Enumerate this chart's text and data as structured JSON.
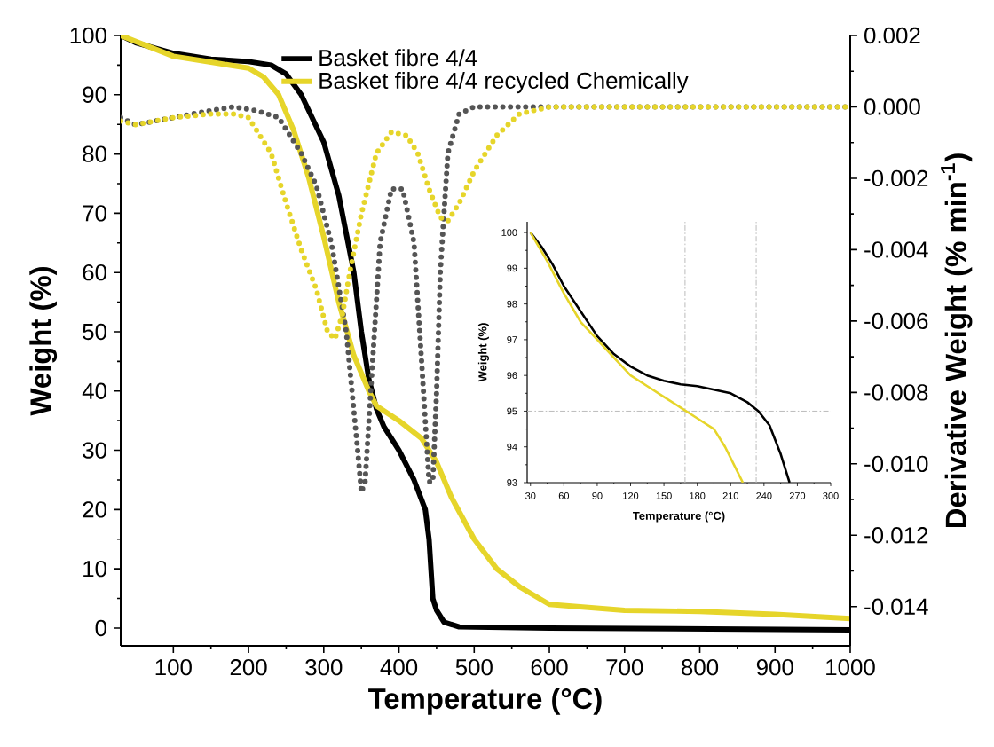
{
  "chart_data": [
    {
      "type": "line",
      "xlabel": "Temperature (°C)",
      "ylabel": "Weight (%)",
      "y2label": "Derivative Weight (% min$^{-1}$)",
      "xlim": [
        30,
        1000
      ],
      "ylim": [
        -3,
        100
      ],
      "y2lim": [
        -0.0151,
        0.002
      ],
      "xticks": [
        100,
        200,
        300,
        400,
        500,
        600,
        700,
        800,
        900,
        1000
      ],
      "yticks": [
        0,
        10,
        20,
        30,
        40,
        50,
        60,
        70,
        80,
        90,
        100
      ],
      "y2ticks": [
        {
          "value": 0.002,
          "label": "0.002"
        },
        {
          "value": 0,
          "label": "0.000"
        },
        {
          "value": -0.002,
          "label": "-0.002"
        },
        {
          "value": -0.004,
          "label": "-0.004"
        },
        {
          "value": -0.006,
          "label": "-0.006"
        },
        {
          "value": -0.008,
          "label": "-0.008"
        },
        {
          "value": -0.01,
          "label": "-0.010"
        },
        {
          "value": -0.012,
          "label": "-0.012"
        },
        {
          "value": -0.014,
          "label": "-0.014"
        }
      ],
      "grid": false,
      "legend": "top",
      "marker": "none",
      "series": [
        {
          "name": "Basket fibre 4/4",
          "color": "#000000",
          "line_style": "solid",
          "x": [
            30,
            50,
            100,
            150,
            200,
            230,
            250,
            270,
            300,
            320,
            340,
            350,
            360,
            370,
            380,
            400,
            420,
            435,
            440,
            445,
            450,
            460,
            480,
            600,
            1000
          ],
          "values": [
            100,
            98.8,
            97,
            96,
            95.6,
            95,
            93.5,
            90,
            82,
            73,
            60,
            50,
            42,
            37,
            34,
            30,
            25,
            20,
            15,
            5,
            3,
            1,
            0.2,
            0,
            -0.3
          ]
        },
        {
          "name": "Basket fibre 4/4 recycled Chemically",
          "color": "#e6d52a",
          "line_style": "solid",
          "x": [
            30,
            100,
            150,
            200,
            220,
            240,
            260,
            280,
            300,
            320,
            340,
            360,
            370,
            400,
            430,
            450,
            470,
            500,
            530,
            560,
            600,
            700,
            800,
            900,
            1000
          ],
          "values": [
            100,
            96.5,
            95.5,
            94.5,
            93,
            90,
            84,
            76,
            66,
            55,
            46,
            40,
            37.5,
            35,
            32,
            28,
            22,
            15,
            10,
            7,
            4,
            3,
            2.8,
            2.3,
            1.6
          ]
        },
        {
          "color": "#555555",
          "line_style": "dotted",
          "axis": "y2",
          "x": [
            30,
            50,
            100,
            150,
            180,
            210,
            240,
            270,
            290,
            310,
            330,
            345,
            350,
            355,
            365,
            375,
            390,
            405,
            420,
            430,
            440,
            445,
            450,
            455,
            465,
            480,
            500,
            1000
          ],
          "values": [
            -0.0003,
            -0.0005,
            -0.0003,
            -0.0001,
            0,
            -0.0001,
            -0.0003,
            -0.0013,
            -0.0022,
            -0.0038,
            -0.0063,
            -0.0096,
            -0.0108,
            -0.0105,
            -0.0071,
            -0.0038,
            -0.0023,
            -0.0023,
            -0.0038,
            -0.0071,
            -0.0105,
            -0.0105,
            -0.008,
            -0.0046,
            -0.0013,
            -0.0002,
            0,
            0
          ]
        },
        {
          "color": "#e6d52a",
          "line_style": "dotted",
          "axis": "y2",
          "x": [
            30,
            50,
            100,
            150,
            180,
            200,
            230,
            250,
            270,
            290,
            305,
            315,
            325,
            335,
            350,
            370,
            390,
            410,
            425,
            440,
            455,
            465,
            480,
            500,
            530,
            560,
            600,
            1000
          ],
          "values": [
            -0.0004,
            -0.0005,
            -0.0003,
            -0.0002,
            -0.0002,
            -0.0003,
            -0.0013,
            -0.0027,
            -0.004,
            -0.0051,
            -0.0063,
            -0.0065,
            -0.0058,
            -0.0046,
            -0.003,
            -0.0013,
            -0.0007,
            -0.0008,
            -0.0013,
            -0.0023,
            -0.0031,
            -0.0032,
            -0.0027,
            -0.0018,
            -0.0008,
            -0.0002,
            0,
            0
          ]
        }
      ]
    },
    {
      "type": "line",
      "xlabel": "Temperature (°C)",
      "ylabel": "Weight (%)",
      "xlim": [
        27,
        300
      ],
      "ylim": [
        93,
        100.3
      ],
      "xticks": [
        30,
        60,
        90,
        120,
        150,
        180,
        210,
        240,
        270,
        300
      ],
      "yticks": [
        93,
        94,
        95,
        96,
        97,
        98,
        99,
        100
      ],
      "grid": false,
      "marker": "none",
      "ref_lines": [
        {
          "axis": "y",
          "value": 95,
          "color": "#bbbbbb",
          "line_style": "dashed"
        },
        {
          "axis": "x",
          "value": 169,
          "color": "#bbbbbb",
          "line_style": "dashed"
        },
        {
          "axis": "x",
          "value": 233,
          "color": "#bbbbbb",
          "line_style": "dashed"
        }
      ],
      "series": [
        {
          "color": "#000000",
          "x": [
            30,
            40,
            50,
            60,
            75,
            90,
            105,
            120,
            135,
            150,
            165,
            180,
            195,
            210,
            225,
            235,
            245,
            255,
            263
          ],
          "values": [
            100,
            99.6,
            99.1,
            98.5,
            97.8,
            97.1,
            96.6,
            96.25,
            96,
            95.85,
            95.75,
            95.7,
            95.6,
            95.5,
            95.25,
            95,
            94.6,
            93.8,
            93
          ]
        },
        {
          "color": "#e6d52a",
          "x": [
            30,
            45,
            60,
            75,
            90,
            105,
            120,
            135,
            150,
            165,
            180,
            195,
            205,
            213,
            221
          ],
          "values": [
            100,
            99.2,
            98.3,
            97.5,
            97,
            96.5,
            96,
            95.7,
            95.4,
            95.1,
            94.8,
            94.5,
            94,
            93.5,
            93
          ]
        }
      ]
    }
  ]
}
